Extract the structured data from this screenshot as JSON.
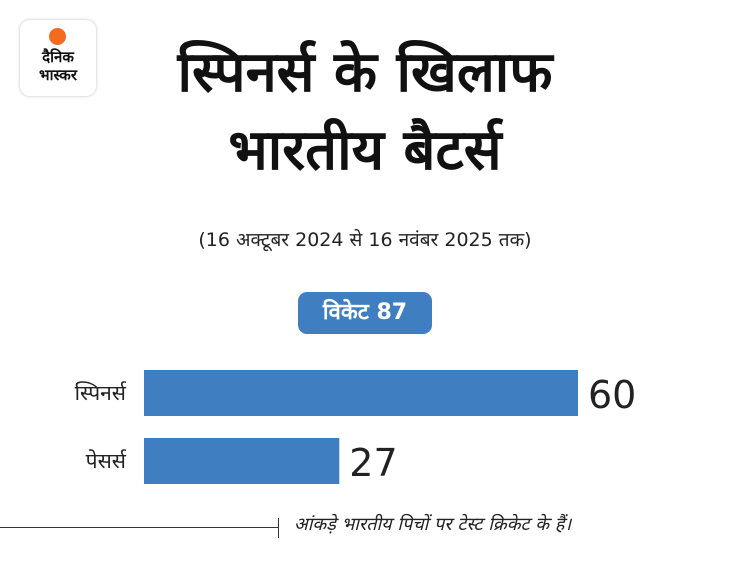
{
  "logo": {
    "line1": "दैनिक",
    "line2": "भास्कर"
  },
  "title_line1": "स्पिनर्स के खिलाफ",
  "title_line2": "भारतीय बैटर्स",
  "subtitle": "(16 अक्टूबर 2024 से 16 नवंबर 2025 तक)",
  "badge": "विकेट 87",
  "footnote": "आंकड़े भारतीय पिचों पर टेस्ट क्रिकेट के हैं।",
  "colors": {
    "bar": "#3f7fc1",
    "logo_sun": "#f26b21"
  },
  "chart_data": {
    "type": "bar",
    "orientation": "horizontal",
    "title": "विकेट 87",
    "categories": [
      "स्पिनर्स",
      "पेसर्स"
    ],
    "values": [
      60,
      27
    ],
    "xlim": [
      0,
      60
    ],
    "grid": false
  }
}
